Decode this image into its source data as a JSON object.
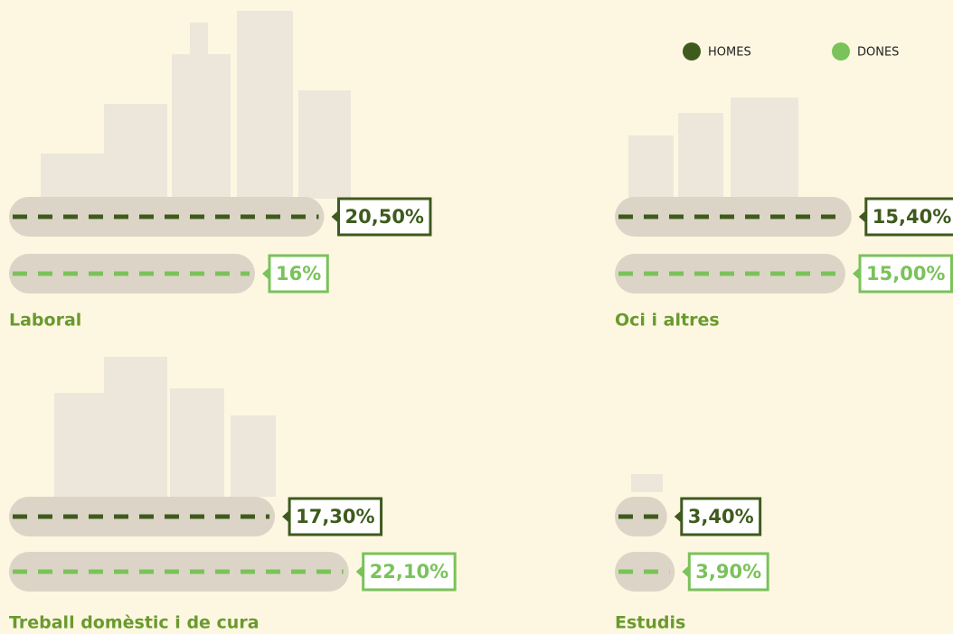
{
  "chart_data": {
    "type": "bar",
    "categories": [
      "Laboral",
      "Oci i altres",
      "Treball domèstic i de cura",
      "Estudis"
    ],
    "series": [
      {
        "name": "HOMES",
        "color": "#3f5a1d",
        "values": [
          20.5,
          15.4,
          17.3,
          3.4
        ],
        "value_labels": [
          "20,50%",
          "15,40%",
          "17,30%",
          "3,40%"
        ]
      },
      {
        "name": "DONES",
        "color": "#7ac25a",
        "values": [
          16,
          15,
          22.1,
          3.9
        ],
        "value_labels": [
          "16%",
          "15,00%",
          "22,10%",
          "3,90%"
        ]
      }
    ],
    "legend": "top-right"
  }
}
